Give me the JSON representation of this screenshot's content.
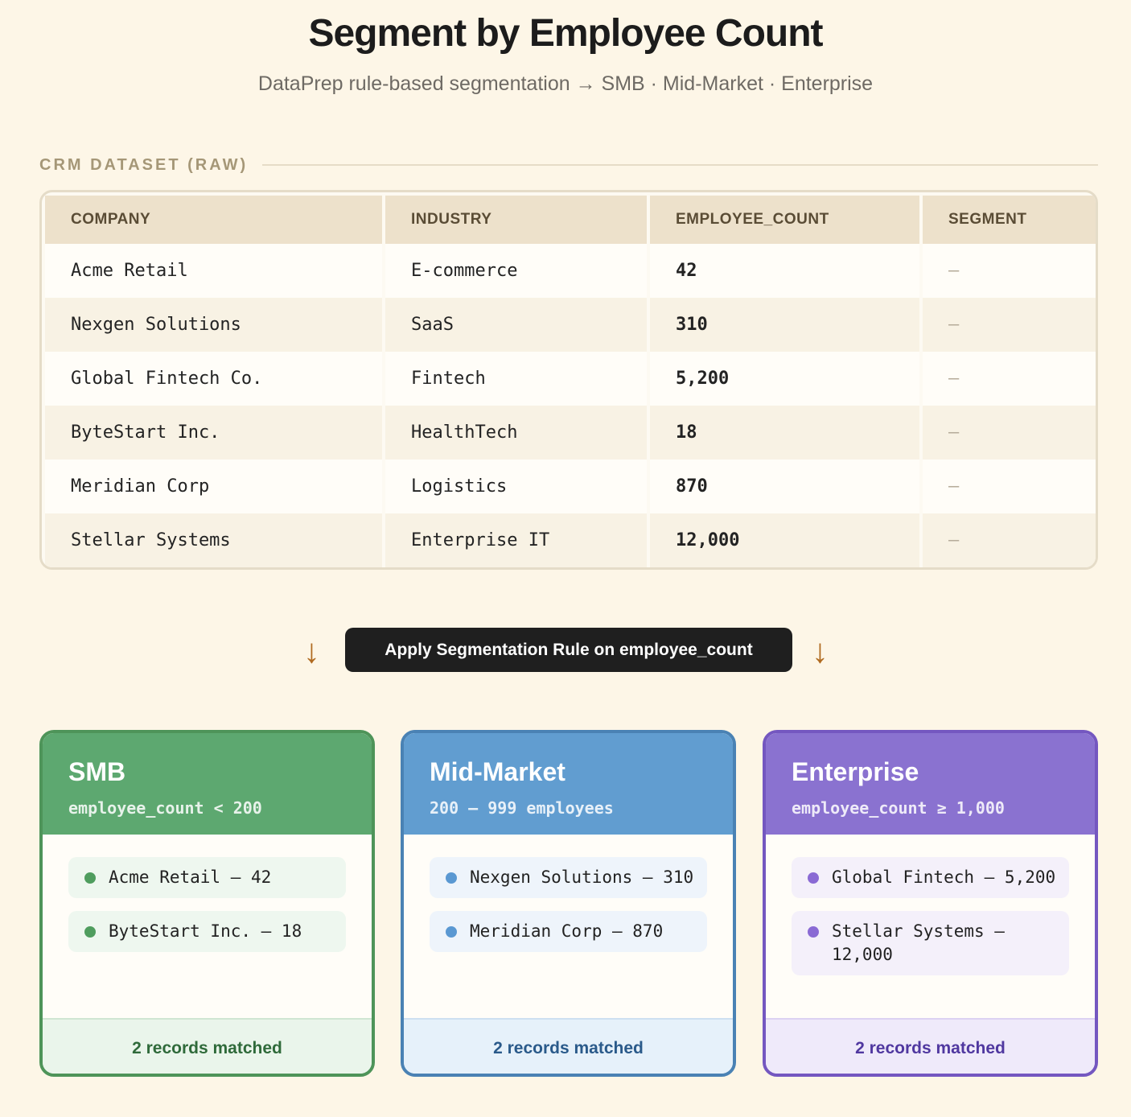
{
  "header": {
    "title": "Segment by Employee Count",
    "subtitle": "DataPrep rule-based segmentation → SMB · Mid-Market · Enterprise"
  },
  "dataset": {
    "section_label": "CRM DATASET (RAW)",
    "columns": [
      "COMPANY",
      "INDUSTRY",
      "EMPLOYEE_COUNT",
      "SEGMENT"
    ],
    "rows": [
      {
        "company": "Acme Retail",
        "industry": "E-commerce",
        "employee_count": "42",
        "segment": "—"
      },
      {
        "company": "Nexgen Solutions",
        "industry": "SaaS",
        "employee_count": "310",
        "segment": "—"
      },
      {
        "company": "Global Fintech Co.",
        "industry": "Fintech",
        "employee_count": "5,200",
        "segment": "—"
      },
      {
        "company": "ByteStart Inc.",
        "industry": "HealthTech",
        "employee_count": "18",
        "segment": "—"
      },
      {
        "company": "Meridian Corp",
        "industry": "Logistics",
        "employee_count": "870",
        "segment": "—"
      },
      {
        "company": "Stellar Systems",
        "industry": "Enterprise IT",
        "employee_count": "12,000",
        "segment": "—"
      }
    ]
  },
  "rule": {
    "label": "Apply Segmentation Rule on employee_count",
    "arrow_glyph": "↓",
    "arrow_color": "#b06a20"
  },
  "segments": [
    {
      "id": "smb",
      "name": "SMB",
      "rule": "employee_count < 200",
      "color": "#5da870",
      "items": [
        "Acme Retail — 42",
        "ByteStart Inc. — 18"
      ],
      "footer": "2 records matched"
    },
    {
      "id": "mid",
      "name": "Mid-Market",
      "rule": "200 – 999 employees",
      "color": "#619dd0",
      "items": [
        "Nexgen Solutions — 310",
        "Meridian Corp — 870"
      ],
      "footer": "2 records matched"
    },
    {
      "id": "ent",
      "name": "Enterprise",
      "rule": "employee_count ≥ 1,000",
      "color": "#8a72d0",
      "items": [
        "Global Fintech — 5,200",
        "Stellar Systems — 12,000"
      ],
      "footer": "2 records matched"
    }
  ]
}
